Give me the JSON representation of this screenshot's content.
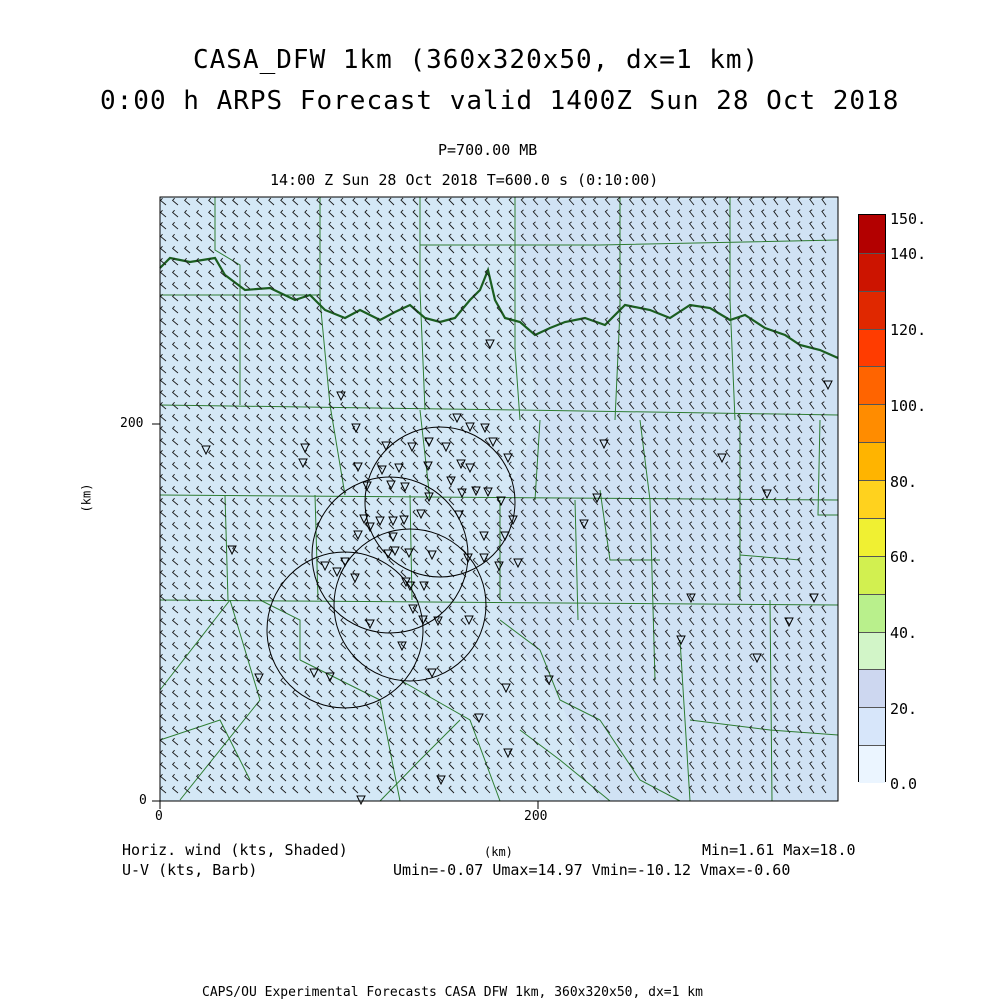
{
  "title": {
    "line1": "CASA_DFW 1km (360x320x50, dx=1 km)",
    "line2": "0:00 h ARPS Forecast valid 1400Z Sun 28 Oct 2018"
  },
  "subtitle": {
    "pressure": "P=700.00 MB",
    "time": "14:00 Z Sun 28 Oct 2018   T=600.0 s (0:10:00)"
  },
  "axes": {
    "x_label": "(km)",
    "y_label": "(km)",
    "x_ticks": [
      "0",
      "200"
    ],
    "y_ticks": [
      "0",
      "200"
    ]
  },
  "colorbar": {
    "labels": [
      "150.",
      "140.",
      "120.",
      "100.",
      "80.",
      "60.",
      "40.",
      "20.",
      "0.0"
    ],
    "colors": [
      "#b30000",
      "#cc1400",
      "#e02800",
      "#ff3c00",
      "#ff6400",
      "#ff8c00",
      "#ffb400",
      "#ffd21e",
      "#f0f032",
      "#d2f050",
      "#b9f08c",
      "#d2f5c8",
      "#cdd7f0",
      "#d7e6fa",
      "#ebf5ff"
    ]
  },
  "footer": {
    "left1": "Horiz. wind (kts, Shaded)",
    "left2": "U-V (kts, Barb)",
    "center": "(km)",
    "right1": "Min=1.61 Max=18.0",
    "right2": "Umin=-0.07 Umax=14.97 Vmin=-10.12 Vmax=-0.60",
    "bottom": "CAPS/OU Experimental Forecasts  CASA DFW 1km, 360x320x50, dx=1 km"
  },
  "style": {
    "map_fill": "#d4e8f6",
    "county_color": "#2e7d32",
    "river_color": "#1b5e20",
    "barb_color": "#1a1a1a"
  }
}
